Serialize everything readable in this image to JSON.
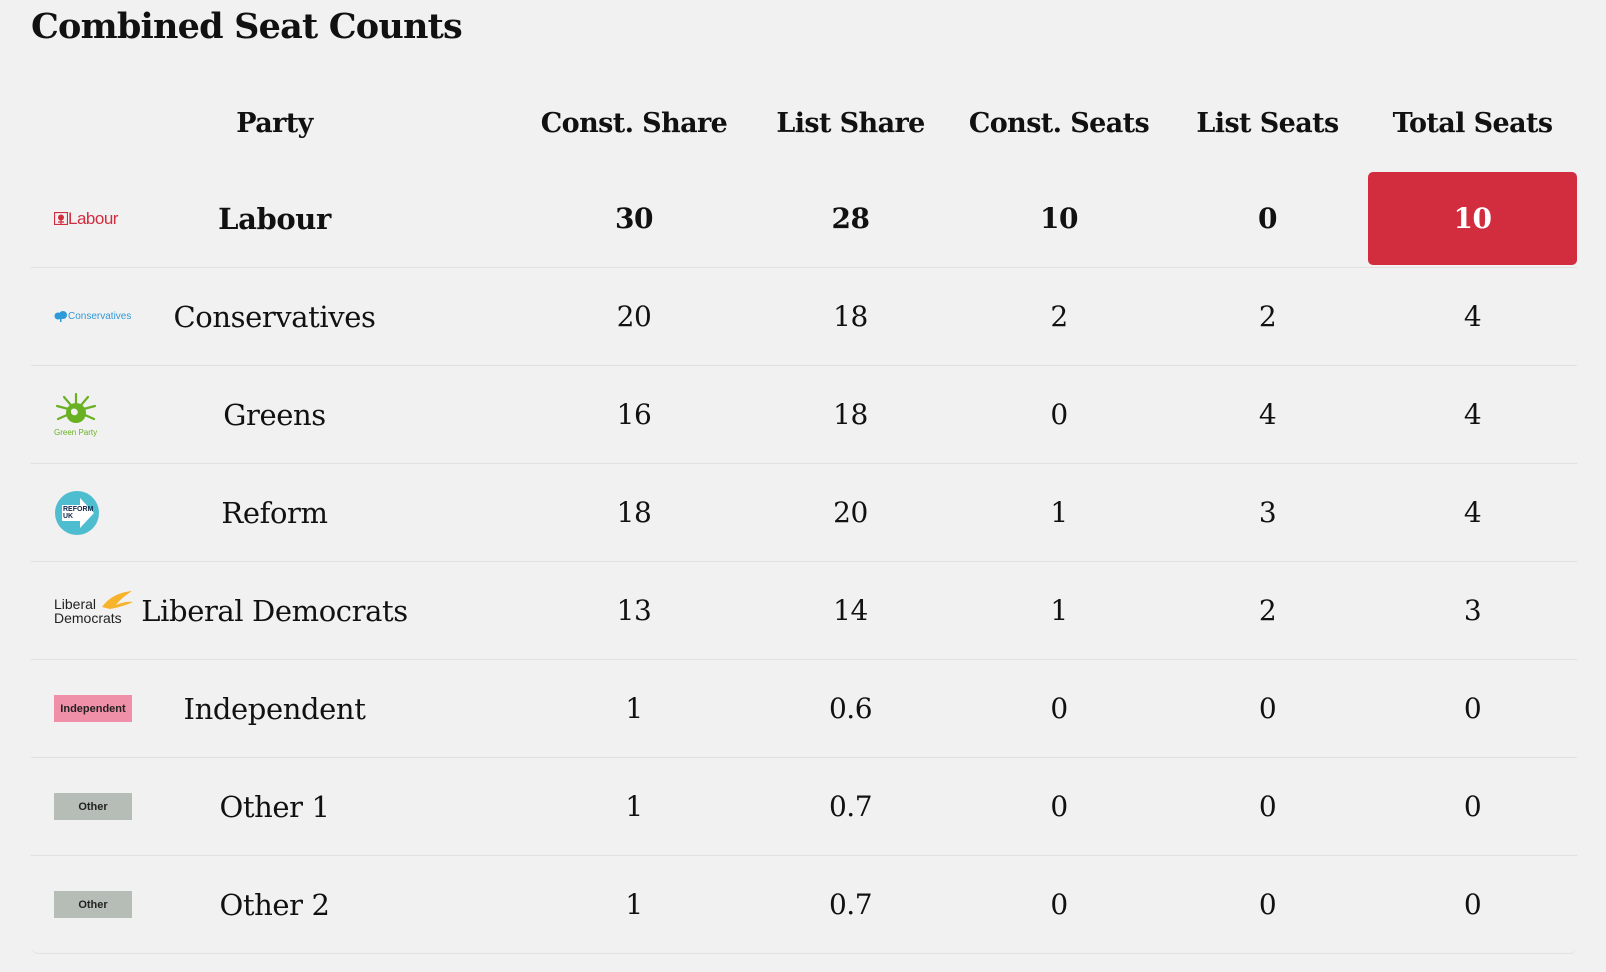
{
  "title": "Combined Seat Counts",
  "columns": {
    "party": "Party",
    "const_share": "Const. Share",
    "list_share": "List Share",
    "const_seats": "Const. Seats",
    "list_seats": "List Seats",
    "total_seats": "Total Seats"
  },
  "rows": [
    {
      "party": "Labour",
      "logo_text": "Labour",
      "const_share": "30",
      "list_share": "28",
      "const_seats": "10",
      "list_seats": "0",
      "total_seats": "10",
      "color": "#d22d3f"
    },
    {
      "party": "Conservatives",
      "logo_text": "Conservatives",
      "const_share": "20",
      "list_share": "18",
      "const_seats": "2",
      "list_seats": "2",
      "total_seats": "4",
      "color": "#2f9ad9"
    },
    {
      "party": "Greens",
      "logo_text": "Green Party",
      "const_share": "16",
      "list_share": "18",
      "const_seats": "0",
      "list_seats": "4",
      "total_seats": "4",
      "color": "#6ab023"
    },
    {
      "party": "Reform",
      "logo_text": "REFORM UK",
      "const_share": "18",
      "list_share": "20",
      "const_seats": "1",
      "list_seats": "3",
      "total_seats": "4",
      "color": "#4fbdd0"
    },
    {
      "party": "Liberal Democrats",
      "logo_text_1": "Liberal",
      "logo_text_2": "Democrats",
      "const_share": "13",
      "list_share": "14",
      "const_seats": "1",
      "list_seats": "2",
      "total_seats": "3",
      "color": "#f7b32b"
    },
    {
      "party": "Independent",
      "logo_text": "Independent",
      "const_share": "1",
      "list_share": "0.6",
      "const_seats": "0",
      "list_seats": "0",
      "total_seats": "0",
      "color": "#f090a8"
    },
    {
      "party": "Other 1",
      "logo_text": "Other",
      "const_share": "1",
      "list_share": "0.7",
      "const_seats": "0",
      "list_seats": "0",
      "total_seats": "0",
      "color": "#b6bdb6"
    },
    {
      "party": "Other 2",
      "logo_text": "Other",
      "const_share": "1",
      "list_share": "0.7",
      "const_seats": "0",
      "list_seats": "0",
      "total_seats": "0",
      "color": "#b6bdb6"
    }
  ],
  "highlight_color": "#d22d3f"
}
